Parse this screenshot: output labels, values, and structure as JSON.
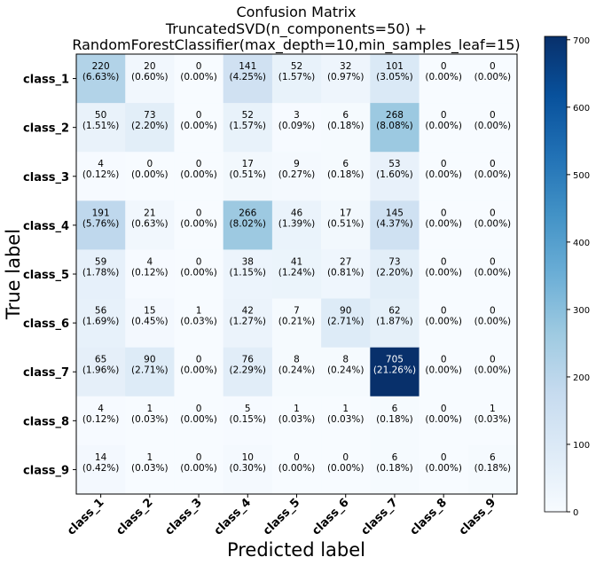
{
  "chart_data": {
    "type": "heatmap",
    "title_lines": [
      "Confusion Matrix",
      "TruncatedSVD(n_components=50) +",
      "RandomForestClassifier(max_depth=10,min_samples_leaf=15)"
    ],
    "xlabel": "Predicted label",
    "ylabel": "True label",
    "x_categories": [
      "class_1",
      "class_2",
      "class_3",
      "class_4",
      "class_5",
      "class_6",
      "class_7",
      "class_8",
      "class_9"
    ],
    "y_categories": [
      "class_1",
      "class_2",
      "class_3",
      "class_4",
      "class_5",
      "class_6",
      "class_7",
      "class_8",
      "class_9"
    ],
    "values": [
      [
        220,
        20,
        0,
        141,
        52,
        32,
        101,
        0,
        0
      ],
      [
        50,
        73,
        0,
        52,
        3,
        6,
        268,
        0,
        0
      ],
      [
        4,
        0,
        0,
        17,
        9,
        6,
        53,
        0,
        0
      ],
      [
        191,
        21,
        0,
        266,
        46,
        17,
        145,
        0,
        0
      ],
      [
        59,
        4,
        0,
        38,
        41,
        27,
        73,
        0,
        0
      ],
      [
        56,
        15,
        1,
        42,
        7,
        90,
        62,
        0,
        0
      ],
      [
        65,
        90,
        0,
        76,
        8,
        8,
        705,
        0,
        0
      ],
      [
        4,
        1,
        0,
        5,
        1,
        1,
        6,
        0,
        1
      ],
      [
        14,
        1,
        0,
        10,
        0,
        0,
        6,
        0,
        6
      ]
    ],
    "percentages": [
      [
        "(6.63%)",
        "(0.60%)",
        "(0.00%)",
        "(4.25%)",
        "(1.57%)",
        "(0.97%)",
        "(3.05%)",
        "(0.00%)",
        "(0.00%)"
      ],
      [
        "(1.51%)",
        "(2.20%)",
        "(0.00%)",
        "(1.57%)",
        "(0.09%)",
        "(0.18%)",
        "(8.08%)",
        "(0.00%)",
        "(0.00%)"
      ],
      [
        "(0.12%)",
        "(0.00%)",
        "(0.00%)",
        "(0.51%)",
        "(0.27%)",
        "(0.18%)",
        "(1.60%)",
        "(0.00%)",
        "(0.00%)"
      ],
      [
        "(5.76%)",
        "(0.63%)",
        "(0.00%)",
        "(8.02%)",
        "(1.39%)",
        "(0.51%)",
        "(4.37%)",
        "(0.00%)",
        "(0.00%)"
      ],
      [
        "(1.78%)",
        "(0.12%)",
        "(0.00%)",
        "(1.15%)",
        "(1.24%)",
        "(0.81%)",
        "(2.20%)",
        "(0.00%)",
        "(0.00%)"
      ],
      [
        "(1.69%)",
        "(0.45%)",
        "(0.03%)",
        "(1.27%)",
        "(0.21%)",
        "(2.71%)",
        "(1.87%)",
        "(0.00%)",
        "(0.00%)"
      ],
      [
        "(1.96%)",
        "(2.71%)",
        "(0.00%)",
        "(2.29%)",
        "(0.24%)",
        "(0.24%)",
        "(21.26%)",
        "(0.00%)",
        "(0.00%)"
      ],
      [
        "(0.12%)",
        "(0.03%)",
        "(0.00%)",
        "(0.15%)",
        "(0.03%)",
        "(0.03%)",
        "(0.18%)",
        "(0.00%)",
        "(0.03%)"
      ],
      [
        "(0.42%)",
        "(0.03%)",
        "(0.00%)",
        "(0.30%)",
        "(0.00%)",
        "(0.00%)",
        "(0.18%)",
        "(0.00%)",
        "(0.18%)"
      ]
    ],
    "color_range": [
      0,
      705
    ],
    "colormap": "Blues",
    "colormap_stops": [
      "#f7fbff",
      "#deebf7",
      "#c6dbef",
      "#9ecae1",
      "#6baed6",
      "#4292c6",
      "#2171b5",
      "#08519c",
      "#08306b"
    ],
    "colorbar_ticks": [
      0,
      100,
      200,
      300,
      400,
      500,
      600,
      700
    ],
    "text_color_dark": "#000000",
    "text_color_light": "#ffffff",
    "text_threshold": 352.5
  }
}
